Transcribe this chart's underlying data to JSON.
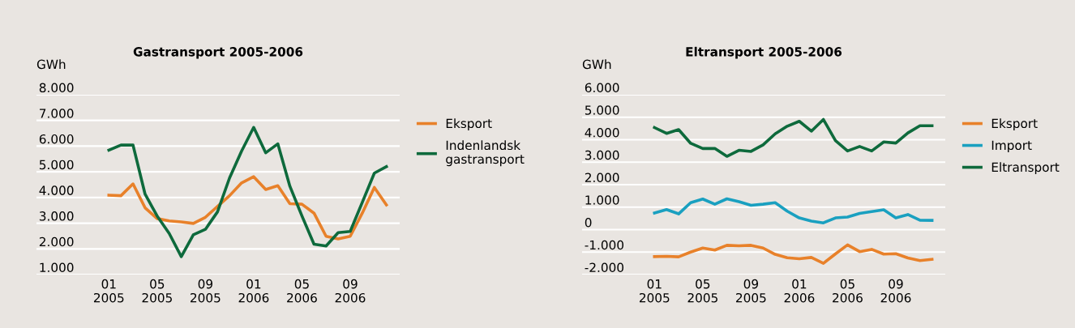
{
  "chart_data": [
    {
      "type": "line",
      "title": "Gastransport 2005-2006",
      "ylabel": "GWh",
      "categories": [
        "01\n2005",
        null,
        null,
        null,
        "05\n2005",
        null,
        null,
        null,
        "09\n2005",
        null,
        null,
        null,
        "01\n2006",
        null,
        null,
        null,
        "05\n2006",
        null,
        null,
        null,
        "09\n2006",
        null,
        null,
        null
      ],
      "series": [
        {
          "name": "Eksport",
          "color": "#e8812a",
          "values": [
            4090,
            4070,
            4530,
            3600,
            3180,
            3090,
            3050,
            2990,
            3230,
            3650,
            4070,
            4570,
            4810,
            4310,
            4460,
            3760,
            3740,
            3390,
            2490,
            2390,
            2490,
            3390,
            4390,
            3710
          ]
        },
        {
          "name": "Indenlandsk\ngastransport",
          "color": "#0e6a3c",
          "values": [
            5840,
            6040,
            6040,
            4130,
            3280,
            2600,
            1700,
            2550,
            2760,
            3440,
            4760,
            5810,
            6730,
            5740,
            6090,
            4440,
            3280,
            2180,
            2110,
            2630,
            2680,
            3810,
            4950,
            5200
          ]
        }
      ],
      "ylim": [
        1000,
        8000
      ],
      "yticks": [
        {
          "value": 1000,
          "label": "1.000"
        },
        {
          "value": 2000,
          "label": "2.000"
        },
        {
          "value": 3000,
          "label": "3.000"
        },
        {
          "value": 4000,
          "label": "4.000"
        },
        {
          "value": 5000,
          "label": "5.000"
        },
        {
          "value": 6000,
          "label": "6.000"
        },
        {
          "value": 7000,
          "label": "7.000"
        },
        {
          "value": 8000,
          "label": "8.000"
        }
      ],
      "grid": "y",
      "legend": "right"
    },
    {
      "type": "line",
      "title": "Eltransport 2005-2006",
      "ylabel": "GWh",
      "categories": [
        "01\n2005",
        null,
        null,
        null,
        "05\n2005",
        null,
        null,
        null,
        "09\n2005",
        null,
        null,
        null,
        "01\n2006",
        null,
        null,
        null,
        "05\n2006",
        null,
        null,
        null,
        "09\n2006",
        null,
        null,
        null
      ],
      "series": [
        {
          "name": "Eksport",
          "color": "#e8812a",
          "values": [
            -1200,
            -1190,
            -1210,
            -1000,
            -820,
            -910,
            -700,
            -720,
            -700,
            -820,
            -1100,
            -1250,
            -1300,
            -1240,
            -1500,
            -1080,
            -680,
            -980,
            -880,
            -1090,
            -1070,
            -1260,
            -1380,
            -1320
          ]
        },
        {
          "name": "Import",
          "color": "#1aa0c0",
          "values": [
            740,
            890,
            700,
            1200,
            1360,
            1130,
            1370,
            1240,
            1080,
            1130,
            1200,
            820,
            520,
            380,
            300,
            520,
            560,
            720,
            800,
            880,
            520,
            670,
            420,
            410
          ]
        },
        {
          "name": "Eltransport",
          "color": "#0e6a3c",
          "values": [
            4540,
            4280,
            4450,
            3840,
            3610,
            3610,
            3260,
            3530,
            3480,
            3770,
            4260,
            4600,
            4820,
            4380,
            4900,
            3960,
            3500,
            3700,
            3500,
            3900,
            3850,
            4300,
            4620,
            4620
          ]
        }
      ],
      "ylim": [
        -2000,
        6000
      ],
      "yticks": [
        {
          "value": -2000,
          "label": "-2.000"
        },
        {
          "value": -1000,
          "label": "-1.000"
        },
        0,
        {
          "value": 1000,
          "label": "1.000"
        },
        {
          "value": 2000,
          "label": "2.000"
        },
        {
          "value": 3000,
          "label": "3.000"
        },
        {
          "value": 4000,
          "label": "4.000"
        },
        {
          "value": 5000,
          "label": "5.000"
        },
        {
          "value": 6000,
          "label": "6.000"
        }
      ],
      "grid": "y",
      "legend": "right"
    }
  ]
}
